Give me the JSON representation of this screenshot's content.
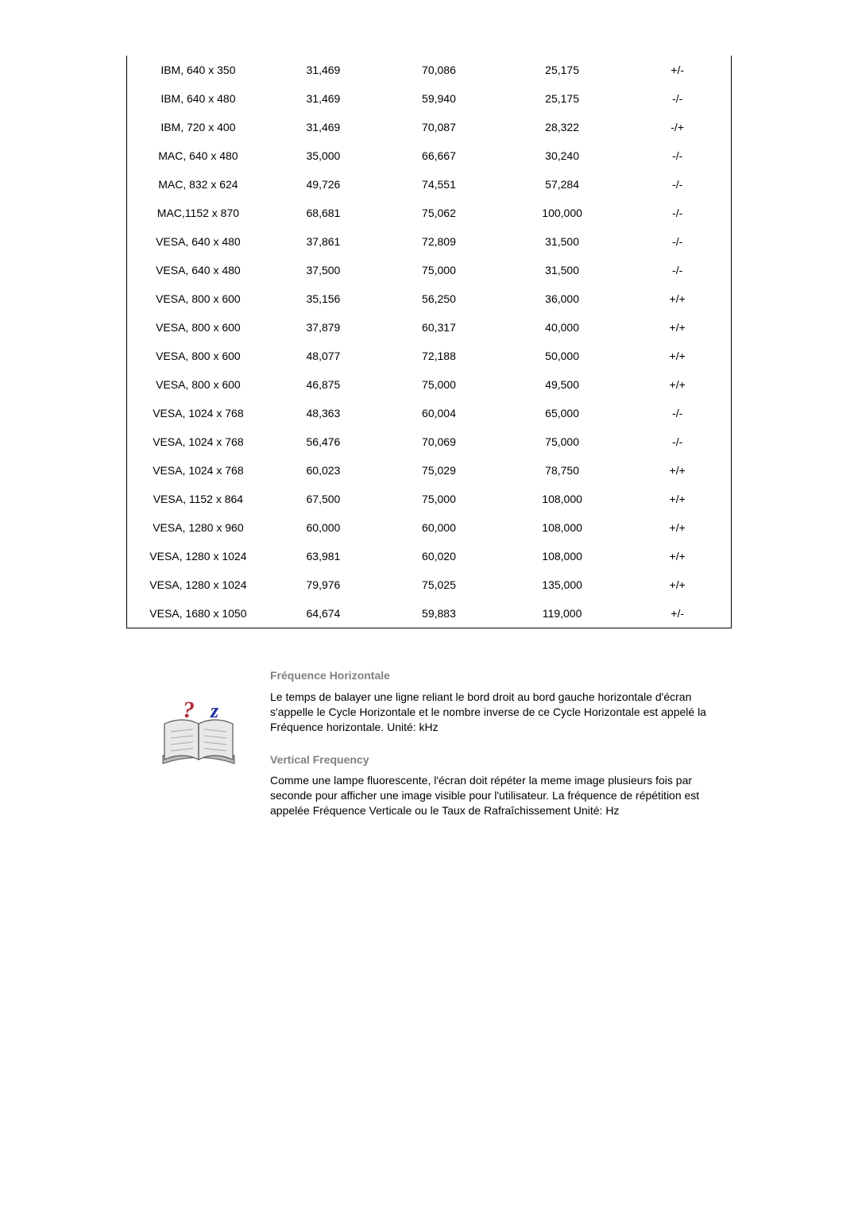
{
  "table": {
    "columns": [
      "mode",
      "hfreq",
      "vfreq",
      "pixclock",
      "polarity"
    ],
    "column_align": [
      "center",
      "center",
      "center",
      "center",
      "center"
    ],
    "font_size": 14,
    "border_color": "#000000",
    "rows": [
      [
        "IBM, 640 x 350",
        "31,469",
        "70,086",
        "25,175",
        "+/-"
      ],
      [
        "IBM, 640 x 480",
        "31,469",
        "59,940",
        "25,175",
        "-/-"
      ],
      [
        "IBM, 720 x 400",
        "31,469",
        "70,087",
        "28,322",
        "-/+"
      ],
      [
        "MAC, 640 x 480",
        "35,000",
        "66,667",
        "30,240",
        "-/-"
      ],
      [
        "MAC, 832 x 624",
        "49,726",
        "74,551",
        "57,284",
        "-/-"
      ],
      [
        "MAC,1152 x 870",
        "68,681",
        "75,062",
        "100,000",
        "-/-"
      ],
      [
        "VESA, 640 x 480",
        "37,861",
        "72,809",
        "31,500",
        "-/-"
      ],
      [
        "VESA, 640 x 480",
        "37,500",
        "75,000",
        "31,500",
        "-/-"
      ],
      [
        "VESA, 800 x 600",
        "35,156",
        "56,250",
        "36,000",
        "+/+"
      ],
      [
        "VESA, 800 x 600",
        "37,879",
        "60,317",
        "40,000",
        "+/+"
      ],
      [
        "VESA, 800 x 600",
        "48,077",
        "72,188",
        "50,000",
        "+/+"
      ],
      [
        "VESA, 800 x 600",
        "46,875",
        "75,000",
        "49,500",
        "+/+"
      ],
      [
        "VESA, 1024 x 768",
        "48,363",
        "60,004",
        "65,000",
        "-/-"
      ],
      [
        "VESA, 1024 x 768",
        "56,476",
        "70,069",
        "75,000",
        "-/-"
      ],
      [
        "VESA, 1024 x 768",
        "60,023",
        "75,029",
        "78,750",
        "+/+"
      ],
      [
        "VESA, 1152 x 864",
        "67,500",
        "75,000",
        "108,000",
        "+/+"
      ],
      [
        "VESA, 1280 x 960",
        "60,000",
        "60,000",
        "108,000",
        "+/+"
      ],
      [
        "VESA, 1280 x 1024",
        "63,981",
        "60,020",
        "108,000",
        "+/+"
      ],
      [
        "VESA, 1280 x 1024",
        "79,976",
        "75,025",
        "135,000",
        "+/+"
      ],
      [
        "VESA, 1680 x 1050",
        "64,674",
        "59,883",
        "119,000",
        "+/-"
      ]
    ]
  },
  "info": {
    "heading1": "Fréquence Horizontale",
    "para1": "Le temps de balayer une ligne reliant le bord droit au bord gauche horizontale d'écran s'appelle le Cycle Horizontale et le nombre inverse de ce Cycle Horizontale est appelé la Fréquence horizontale. Unité: kHz",
    "heading2": "Vertical Frequency",
    "para2": "Comme une lampe fluorescente, l'écran doit répéter la meme image plusieurs fois par seconde pour afficher une image visible pour l'utilisateur. La fréquence de répétition est appelée Fréquence Verticale ou le Taux de Rafraîchissement Unité: Hz",
    "heading_color": "#808080",
    "text_color": "#000000",
    "icon_colors": {
      "book_dark": "#5a5a5a",
      "book_light": "#d0d0d0",
      "q": "#b03040",
      "z": "#2030a0"
    }
  }
}
